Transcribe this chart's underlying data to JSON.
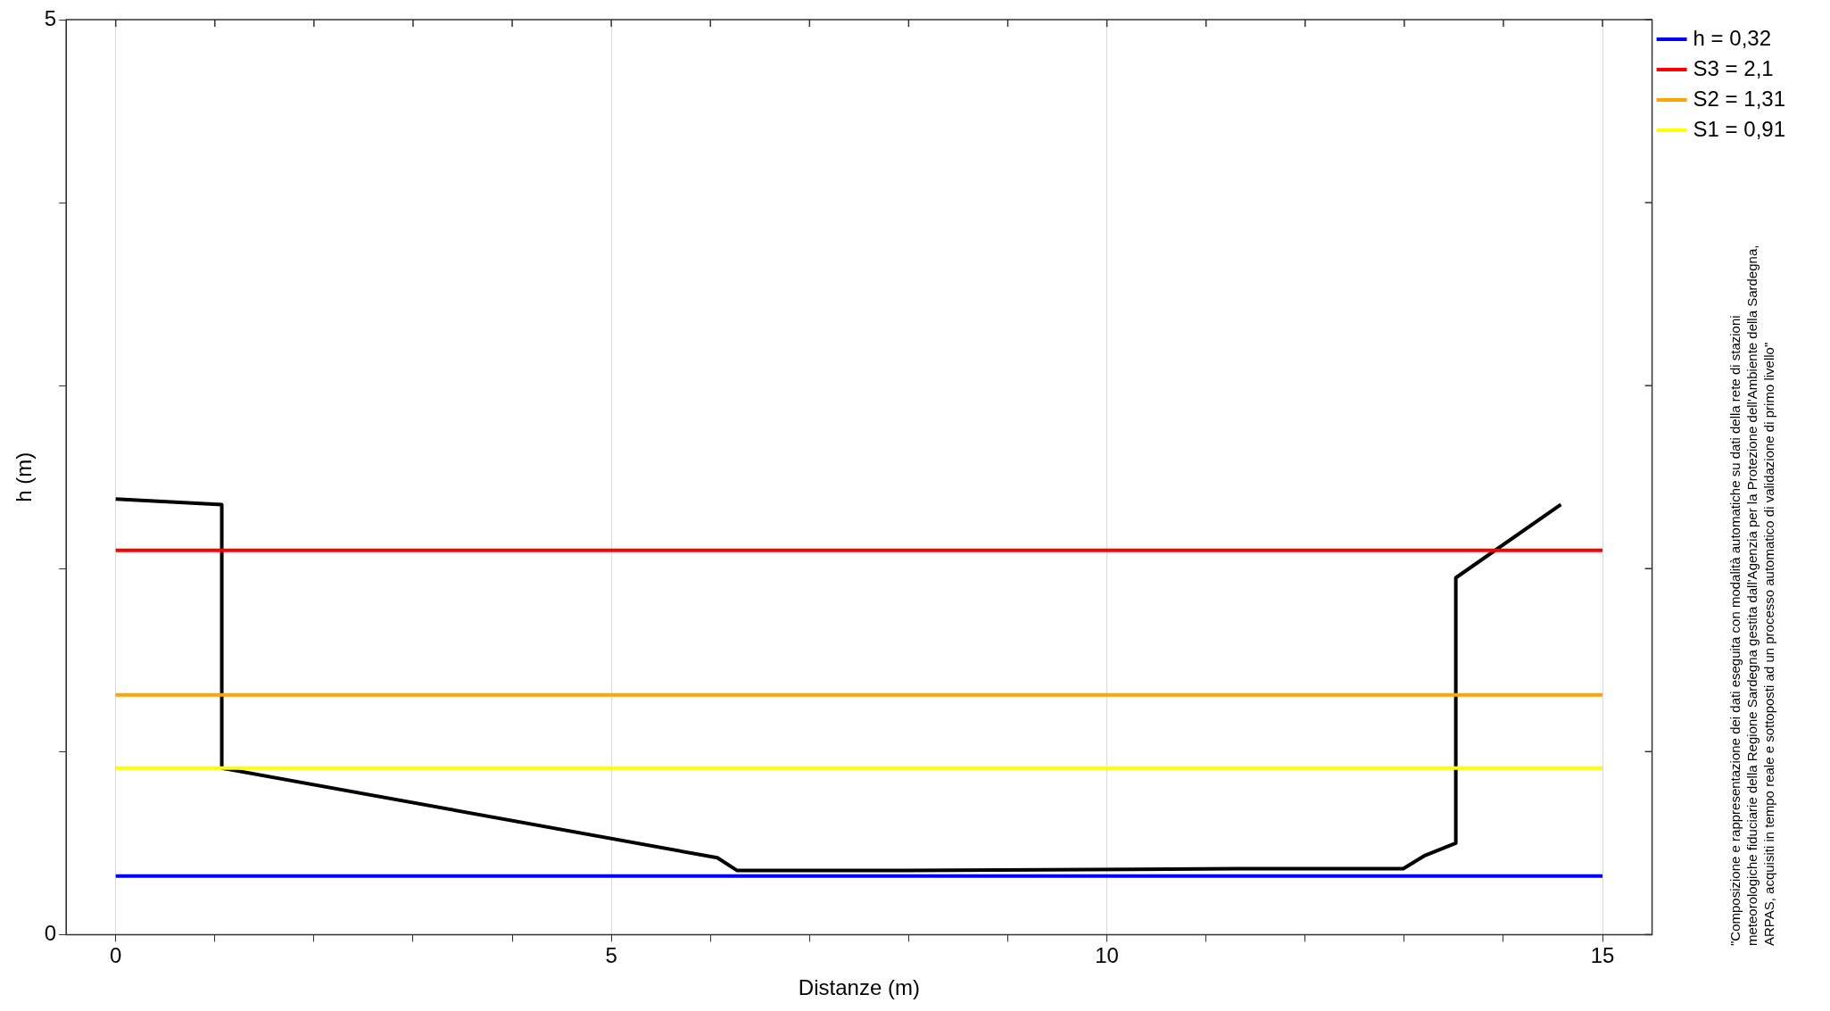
{
  "chart_data": {
    "type": "line",
    "xlabel": "Distanze (m)",
    "ylabel": "h (m)",
    "xlim": [
      -0.5,
      15.5
    ],
    "ylim": [
      0,
      5
    ],
    "xticks": [
      0,
      {
        "value": 1,
        "label": null
      },
      {
        "value": 2,
        "label": null
      },
      {
        "value": 3,
        "label": null
      },
      {
        "value": 4,
        "label": null
      },
      5,
      {
        "value": 6,
        "label": null
      },
      {
        "value": 7,
        "label": null
      },
      {
        "value": 8,
        "label": null
      },
      {
        "value": 9,
        "label": null
      },
      10,
      {
        "value": 11,
        "label": null
      },
      {
        "value": 12,
        "label": null
      },
      {
        "value": 13,
        "label": null
      },
      {
        "value": 14,
        "label": null
      },
      15
    ],
    "yticks": [
      0,
      {
        "value": 1,
        "label": null
      },
      {
        "value": 2,
        "label": null
      },
      {
        "value": 3,
        "label": null
      },
      {
        "value": 4,
        "label": null
      },
      5
    ],
    "grid": "x",
    "legend": "top right",
    "marker": "none",
    "line_style": "solid",
    "annotations": [
      "\"Composizione e rappresentazione dei dati eseguita con modalità automatiche su dati della rete di stazioni\nmeteorologiche fiduciarie della Regione Sardegna gestita dall'Agenzia per la Protezione dell'Ambiente della Sardegna,\nARPAS, acquisiti in tempo reale e sottoposti ad un processo automatico di validazione di primo livello\""
    ],
    "series": [
      {
        "name": "h = 0,32",
        "color": "#0000ff",
        "x": [
          0,
          15
        ],
        "values": [
          0.32,
          0.32
        ]
      },
      {
        "name": "S3 = 2,1",
        "color": "#ff0000",
        "x": [
          0,
          15
        ],
        "values": [
          2.1,
          2.1
        ]
      },
      {
        "name": "S2 = 1,31",
        "color": "#ffa500",
        "x": [
          0,
          15
        ],
        "values": [
          1.31,
          1.31
        ]
      },
      {
        "name": "S1 = 0,91",
        "color": "#ffff00",
        "x": [
          0,
          15
        ],
        "values": [
          0.91,
          0.91
        ]
      },
      {
        "color": "#000000",
        "x": [
          0,
          1.07,
          1.07,
          6.07,
          6.27,
          7.95,
          11.32,
          12.99,
          13.2,
          13.52,
          13.52,
          14.58
        ],
        "values": [
          2.38,
          2.35,
          0.91,
          0.42,
          0.35,
          0.35,
          0.36,
          0.36,
          0.43,
          0.5,
          1.95,
          2.35
        ]
      }
    ]
  }
}
